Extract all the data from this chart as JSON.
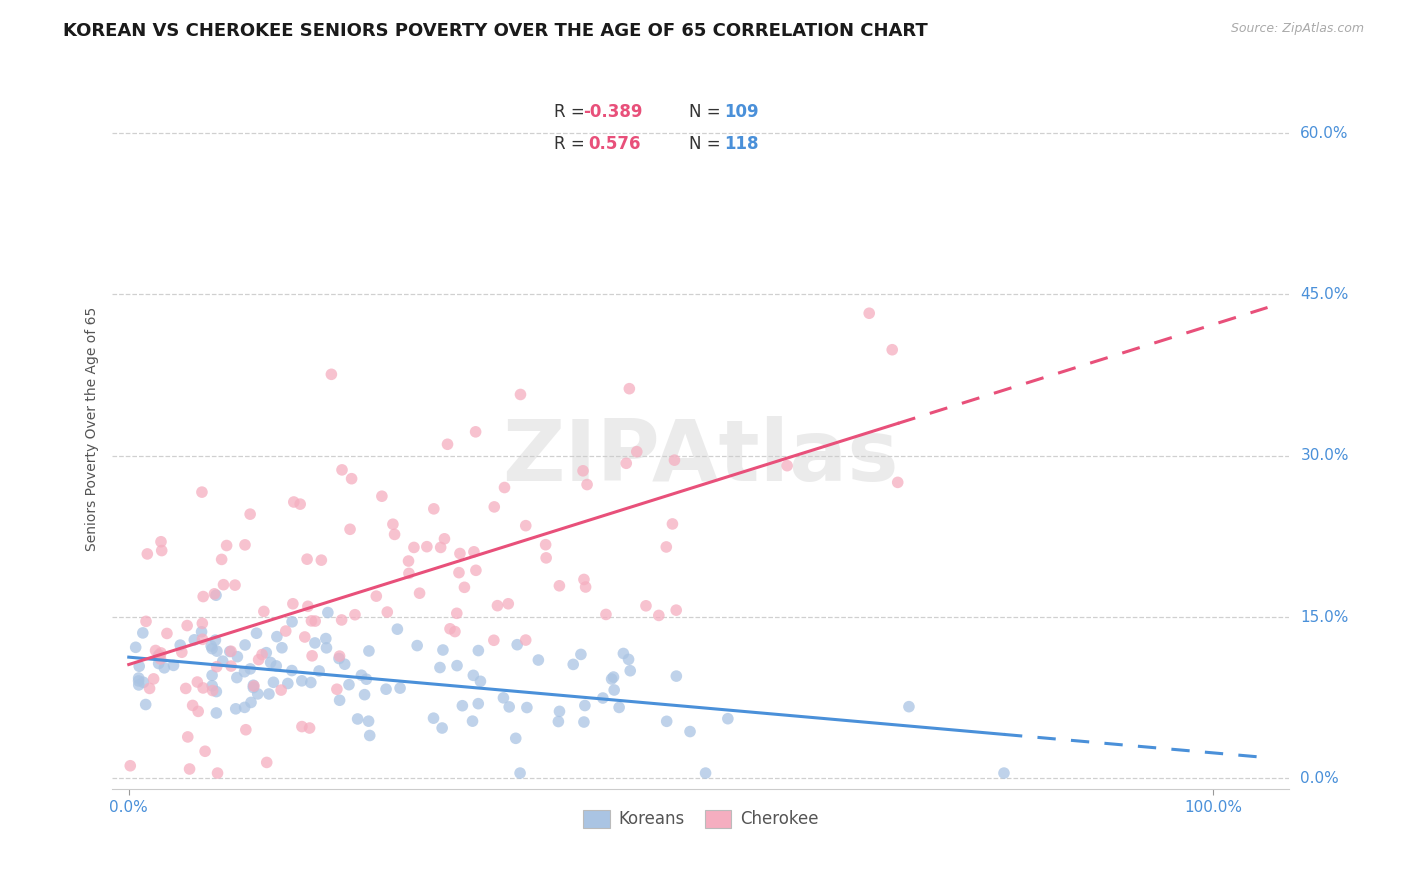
{
  "title": "KOREAN VS CHEROKEE SENIORS POVERTY OVER THE AGE OF 65 CORRELATION CHART",
  "source": "Source: ZipAtlas.com",
  "ylabel": "Seniors Poverty Over the Age of 65",
  "korean_R": -0.389,
  "korean_N": 109,
  "cherokee_R": 0.576,
  "cherokee_N": 118,
  "korean_color": "#aac4e3",
  "cherokee_color": "#f5aec0",
  "korean_line_color": "#4a90d9",
  "cherokee_line_color": "#e8507a",
  "watermark": "ZIPAtlas",
  "background_color": "#ffffff",
  "grid_color": "#d0d0d0",
  "title_fontsize": 13,
  "axis_label_fontsize": 10,
  "tick_fontsize": 11,
  "right_tick_color": "#4a90d9",
  "yticks": [
    0.0,
    0.15,
    0.3,
    0.45,
    0.6
  ],
  "ytick_labels": [
    "0.0%",
    "15.0%",
    "30.0%",
    "45.0%",
    "60.0%"
  ],
  "xticks": [
    0.0,
    1.0
  ],
  "xtick_labels": [
    "0.0%",
    "100.0%"
  ]
}
